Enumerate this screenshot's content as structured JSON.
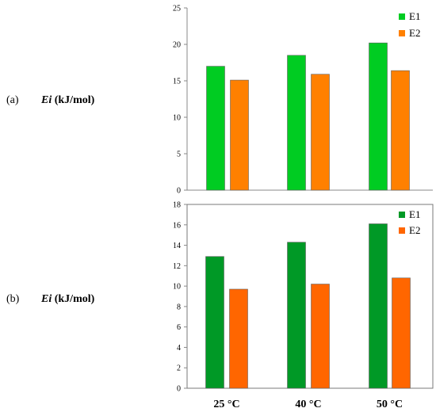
{
  "panels": [
    {
      "letter": "(a)",
      "ylabel_symbol": "Ei",
      "ylabel_unit": "(kJ/mol)"
    },
    {
      "letter": "(b)",
      "ylabel_symbol": "Ei",
      "ylabel_unit": "(kJ/mol)"
    }
  ],
  "colors": {
    "a_E1": "#00cc22",
    "a_E2": "#ff8000",
    "b_E1": "#009926",
    "b_E2": "#ff6600",
    "axis": "#888888",
    "border": "#7a7a7a"
  },
  "chart_data": [
    {
      "type": "bar",
      "categories": [
        "25 °C",
        "40 °C",
        "50 °C"
      ],
      "series": [
        {
          "name": "E1",
          "values": [
            17.0,
            18.5,
            20.2
          ]
        },
        {
          "name": "E2",
          "values": [
            15.1,
            15.9,
            16.4
          ]
        }
      ],
      "ylabel": "Ei (kJ/mol)",
      "ylim": [
        0,
        25
      ],
      "yticks": [
        0,
        5,
        10,
        15,
        20,
        25
      ],
      "legend": "top-right",
      "grid": false,
      "show_category_labels": false
    },
    {
      "type": "bar",
      "categories": [
        "25 °C",
        "40 °C",
        "50 °C"
      ],
      "series": [
        {
          "name": "E1",
          "values": [
            12.9,
            14.3,
            16.1
          ]
        },
        {
          "name": "E2",
          "values": [
            9.7,
            10.2,
            10.8
          ]
        }
      ],
      "ylabel": "Ei (kJ/mol)",
      "ylim": [
        0,
        18
      ],
      "yticks": [
        0,
        2,
        4,
        6,
        8,
        10,
        12,
        14,
        16,
        18
      ],
      "legend": "top-right",
      "grid": false,
      "show_category_labels": true
    }
  ]
}
